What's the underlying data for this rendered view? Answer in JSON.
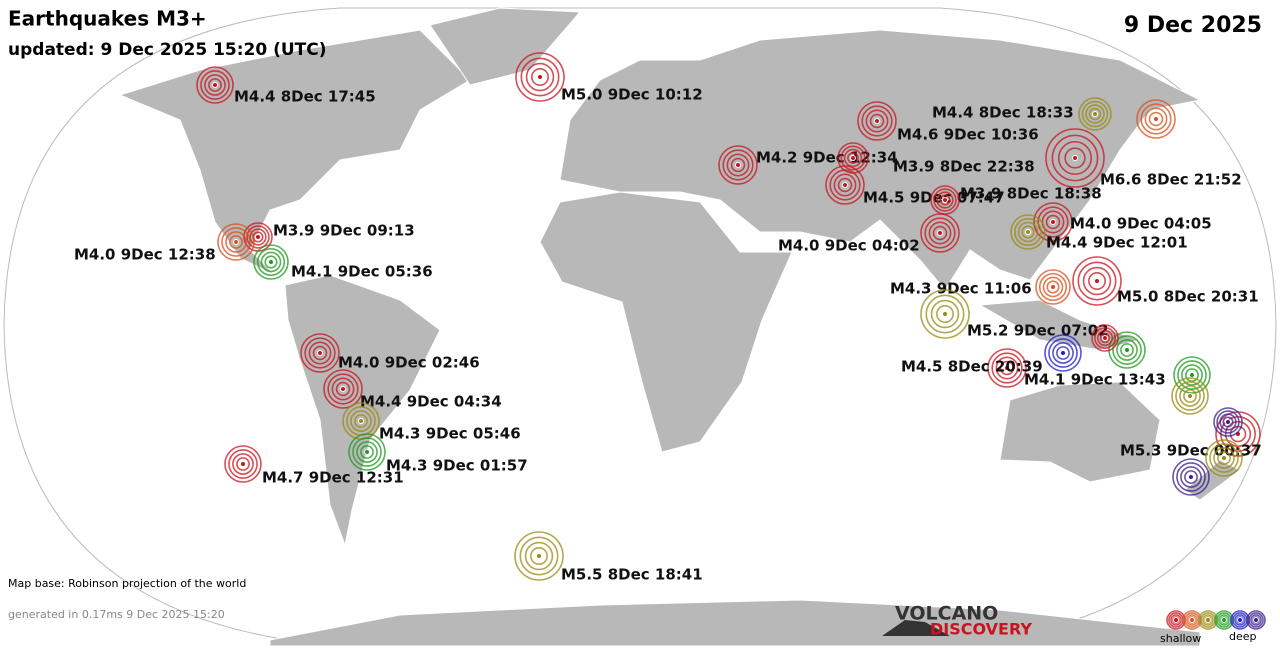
{
  "header": {
    "title": "Earthquakes M3+",
    "updated": "updated:  9 Dec 2025 15:20 (UTC)",
    "date": "9 Dec 2025"
  },
  "quakes": [
    {
      "label": "M4.4  8Dec 17:45",
      "color": "#c8141e"
    },
    {
      "label": "M5.0  9Dec 10:12",
      "color": "#c8141e"
    },
    {
      "label": "M4.4  8Dec 18:33",
      "color": "#9a8a10"
    },
    {
      "color": "#d8501e"
    },
    {
      "label": "M4.6  9Dec 10:36",
      "color": "#c8141e"
    },
    {
      "label": "M4.2  9Dec 12:34",
      "color": "#c8141e"
    },
    {
      "label": "M3.9  8Dec 22:38",
      "color": "#c8141e"
    },
    {
      "label": "M6.6  8Dec 21:52",
      "color": "#c8141e"
    },
    {
      "label": "M4.5  9Dec 07:47",
      "color": "#c8141e"
    },
    {
      "label": "M3.9  8Dec 18:38",
      "color": "#c8141e"
    },
    {
      "label": "M4.0  9Dec 04:05",
      "color": "#c8141e"
    },
    {
      "label": "M4.4  9Dec 12:01",
      "color": "#9a8a10"
    },
    {
      "label": "M4.0  9Dec 04:02",
      "color": "#c8141e"
    },
    {
      "label": "M3.9  9Dec 09:13",
      "color": "#c8141e"
    },
    {
      "label": "M4.0  9Dec 12:38",
      "color": "#d8501e"
    },
    {
      "label": "M4.1  9Dec 05:36",
      "color": "#1e9a1e"
    },
    {
      "label": "M4.3  9Dec 11:06",
      "color": "#d8501e"
    },
    {
      "label": "M5.0  8Dec 20:31",
      "color": "#c8141e"
    },
    {
      "label": "M5.2  9Dec 07:02",
      "color": "#9a8a10"
    },
    {
      "label": "M4.5  8Dec 20:39",
      "color": "#c8141e"
    },
    {
      "label": "M4.1  9Dec 13:43",
      "color": "#1e1ec8"
    },
    {
      "color": "#1e9a1e"
    },
    {
      "color": "#c8141e"
    },
    {
      "label": "M4.0  9Dec 02:46",
      "color": "#c8141e"
    },
    {
      "label": "M4.4  9Dec 04:34",
      "color": "#c8141e"
    },
    {
      "label": "M4.3  9Dec 05:46",
      "color": "#9a8a10"
    },
    {
      "label": "M4.3  9Dec 01:57",
      "color": "#1e9a1e"
    },
    {
      "label": "M4.7  9Dec 12:31",
      "color": "#c8141e"
    },
    {
      "label": "M5.5  8Dec 18:41",
      "color": "#9a8a10"
    },
    {
      "label": "M5.3  9Dec 00:37",
      "color": "#c8141e"
    },
    {
      "color": "#1e9a1e"
    },
    {
      "color": "#9a8a10"
    },
    {
      "color": "#3a1e8a"
    },
    {
      "color": "#9a8a10"
    },
    {
      "color": "#3a1e8a"
    }
  ],
  "footer": {
    "map_base": "Map base: Robinson projection of the world",
    "generated": "generated in 0.17ms  9 Dec 2025 15:20",
    "logo_top": "VOLCANO",
    "logo_bottom": "DISCOVERY"
  },
  "legend": {
    "colors": [
      "#c8141e",
      "#d8501e",
      "#9a8a10",
      "#1e9a1e",
      "#1e1ec8",
      "#3a1e8a"
    ],
    "shallow": "shallow",
    "deep": "deep"
  }
}
